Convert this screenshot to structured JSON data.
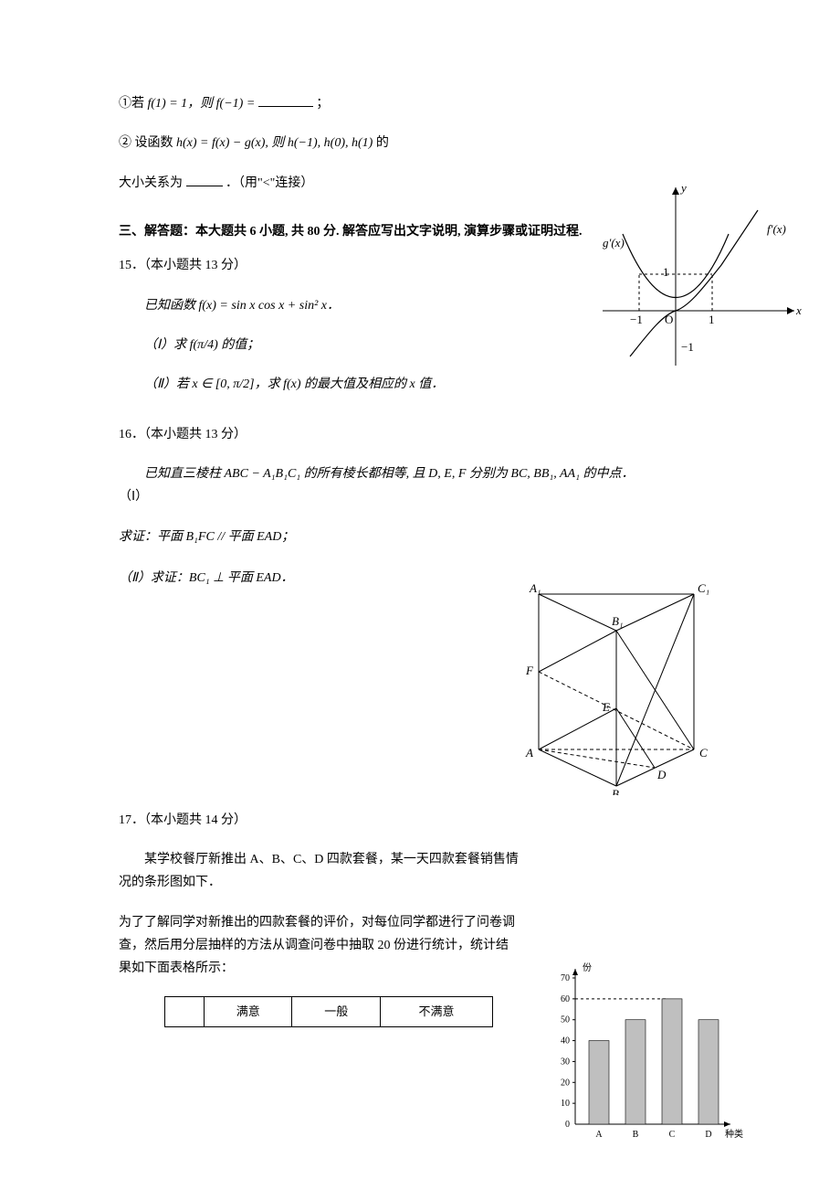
{
  "q14": {
    "part1_pre": "①若 ",
    "part1_mid": "f(1) = 1，则 f(−1) = ",
    "part1_post": "；",
    "part2_pre": "② 设函数 ",
    "part2_mid": "h(x) = f(x) − g(x), 则 h(−1), h(0), h(1)",
    "part2_line2": "的",
    "relation_pre": "大小关系为",
    "relation_post": "．（用\"<\"连接）"
  },
  "section3": {
    "title": "三、解答题：本大题共 6 小题, 共 80 分. 解答应写出文字说明, 演算步骤或证明过程."
  },
  "q15": {
    "num": "15．（本小题共 13 分）",
    "stem": "已知函数 f(x) = sin x cos x + sin² x．",
    "p1": "（Ⅰ）求 f(π/4) 的值；",
    "p2": "（Ⅱ）若 x ∈ [0, π/2]，求 f(x) 的最大值及相应的 x 值．"
  },
  "q16": {
    "num": "16．（本小题共 13 分）",
    "stem_a": "已知直三棱柱 ABC − A₁B₁C₁ 的所有棱长都相等, 且 D, E, F 分别为 BC, BB₁, AA₁ 的中点．",
    "stem_b": "（Ⅰ）",
    "p1": "求证：平面 B₁FC // 平面 EAD；",
    "p2": "（Ⅱ）求证：BC₁ ⊥ 平面 EAD．"
  },
  "q17": {
    "num": "17．（本小题共 14 分）",
    "stem1": "某学校餐厅新推出 A、B、C、D 四款套餐，某一天四款套餐销售情况的条形图如下．",
    "stem2": "为了了解同学对新推出的四款套餐的评价，对每位同学都进行了问卷调查，然后用分层抽样的方法从调查问卷中抽取 20 份进行统计，统计结果如下面表格所示：",
    "table": {
      "headers": [
        "",
        "满意",
        "一般",
        "不满意"
      ]
    }
  },
  "fig1": {
    "labels": {
      "y": "y",
      "x": "x",
      "g": "g′(x)",
      "f": "f′(x)",
      "O": "O",
      "one": "1",
      "neg1": "−1",
      "neg1y": "−1",
      "one_y": "1"
    },
    "colors": {
      "axis": "#000000",
      "curve": "#000000",
      "dash": "#000000"
    }
  },
  "fig2": {
    "labels": {
      "A": "A",
      "B": "B",
      "C": "C",
      "A1": "A₁",
      "B1": "B₁",
      "C1": "C₁",
      "D": "D",
      "E": "E",
      "F": "F"
    }
  },
  "fig3": {
    "type": "bar",
    "categories": [
      "A",
      "B",
      "C",
      "D"
    ],
    "values": [
      40,
      50,
      60,
      50
    ],
    "ylim": [
      0,
      70
    ],
    "ytick_step": 10,
    "bar_colors": [
      "#bfbfbf",
      "#bfbfbf",
      "#bfbfbf",
      "#bfbfbf"
    ],
    "axis_color": "#000000",
    "ylabel": "份",
    "xlabel": "种类",
    "dash_color": "#000000",
    "bar_width": 0.55,
    "label_fontsize": 10
  }
}
